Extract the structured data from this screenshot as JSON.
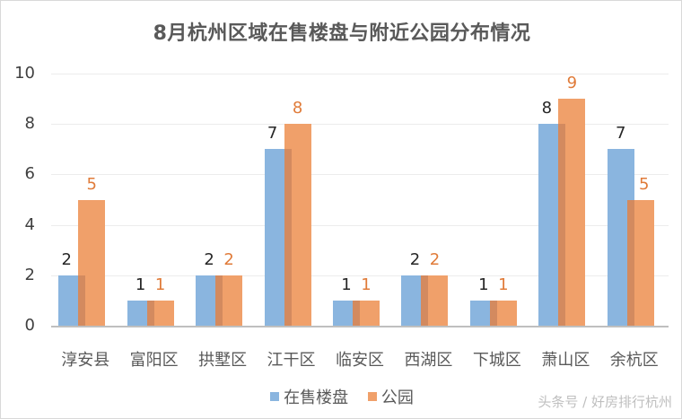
{
  "chart_data": {
    "type": "bar",
    "title": "8月杭州区域在售楼盘与附近公园分布情况",
    "xlabel": "",
    "ylabel": "",
    "ylim": [
      0,
      10
    ],
    "yticks": [
      0,
      2,
      4,
      6,
      8,
      10
    ],
    "grid": true,
    "legend_position": "bottom",
    "categories": [
      "淳安县",
      "富阳区",
      "拱墅区",
      "江干区",
      "临安区",
      "西湖区",
      "下城区",
      "萧山区",
      "余杭区"
    ],
    "series": [
      {
        "name": "在售楼盘",
        "color": "#8ab5df",
        "values": [
          2,
          1,
          2,
          7,
          1,
          2,
          1,
          8,
          7
        ]
      },
      {
        "name": "公园",
        "color": "#f0a06a",
        "values": [
          5,
          1,
          2,
          8,
          1,
          2,
          1,
          9,
          5
        ]
      }
    ]
  },
  "watermark": "头条号 / 好房排行杭州"
}
